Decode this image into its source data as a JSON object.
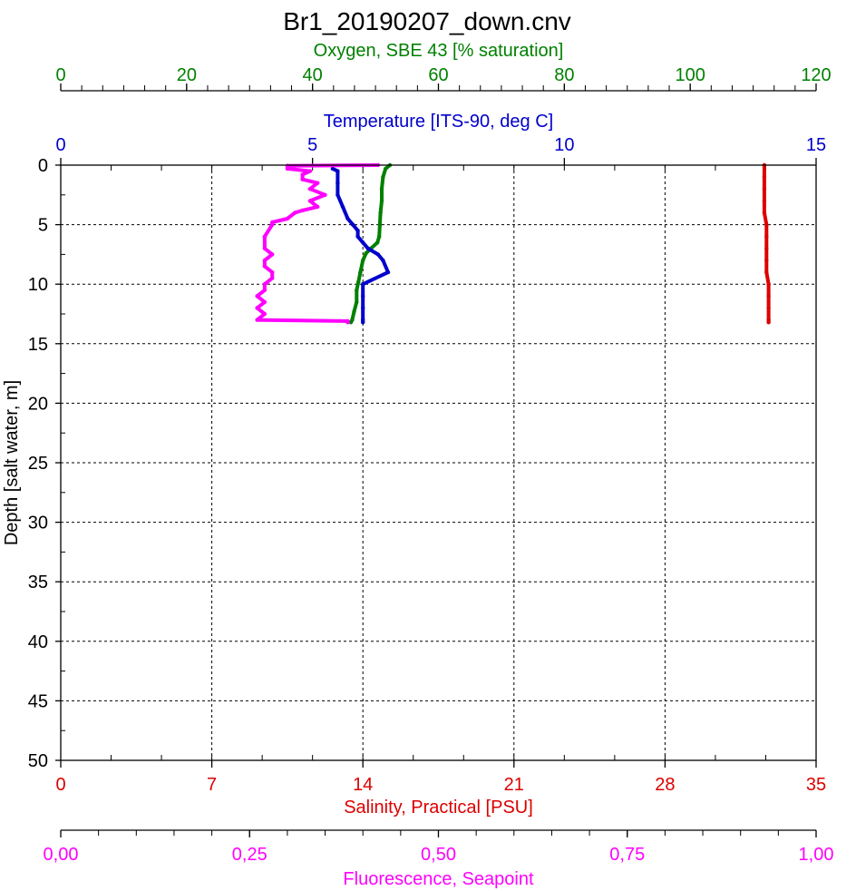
{
  "chart_data": {
    "type": "line",
    "title": "Br1_20190207_down.cnv",
    "y_axis": {
      "label": "Depth [salt water, m]",
      "range": [
        0,
        50
      ],
      "inverted": true,
      "ticks": [
        0,
        5,
        10,
        15,
        20,
        25,
        30,
        35,
        40,
        45,
        50
      ],
      "tick_labels": [
        "0",
        "5",
        "10",
        "15",
        "20",
        "25",
        "30",
        "35",
        "40",
        "45",
        "50"
      ],
      "color": "#000000"
    },
    "x_axes": [
      {
        "id": "oxygen",
        "label": "Oxygen, SBE 43 [% saturation]",
        "position": "top-outer",
        "range": [
          0,
          120
        ],
        "ticks": [
          0,
          20,
          40,
          60,
          80,
          100,
          120
        ],
        "tick_labels": [
          "0",
          "20",
          "40",
          "60",
          "80",
          "100",
          "120"
        ],
        "color": "#008000"
      },
      {
        "id": "temperature",
        "label": "Temperature [ITS-90, deg C]",
        "position": "top-inner",
        "range": [
          0,
          15
        ],
        "ticks": [
          0,
          5,
          10,
          15
        ],
        "tick_labels": [
          "0",
          "5",
          "10",
          "15"
        ],
        "color": "#0000cc"
      },
      {
        "id": "salinity",
        "label": "Salinity, Practical [PSU]",
        "position": "bottom-inner",
        "range": [
          0,
          35
        ],
        "ticks": [
          0,
          7,
          14,
          21,
          28,
          35
        ],
        "tick_labels": [
          "0",
          "7",
          "14",
          "21",
          "28",
          "35"
        ],
        "color": "#dd0000"
      },
      {
        "id": "fluorescence",
        "label": "Fluorescence, Seapoint",
        "position": "bottom-outer",
        "range": [
          0,
          1
        ],
        "ticks": [
          0,
          0.25,
          0.5,
          0.75,
          1.0
        ],
        "tick_labels": [
          "0,00",
          "0,25",
          "0,50",
          "0,75",
          "1,00"
        ],
        "color": "#ff00ff"
      }
    ],
    "grid": true,
    "series": [
      {
        "axis": "oxygen",
        "color": "#008000",
        "points": [
          [
            52.3,
            0.0
          ],
          [
            51.6,
            0.3
          ],
          [
            51.2,
            1.0
          ],
          [
            51.0,
            2.0
          ],
          [
            51.0,
            3.0
          ],
          [
            50.8,
            4.0
          ],
          [
            50.7,
            5.0
          ],
          [
            50.6,
            6.0
          ],
          [
            50.3,
            6.5
          ],
          [
            49.3,
            7.0
          ],
          [
            48.5,
            7.4
          ],
          [
            48.0,
            8.0
          ],
          [
            47.6,
            9.0
          ],
          [
            47.3,
            9.8
          ],
          [
            47.0,
            10.5
          ],
          [
            47.0,
            11.5
          ],
          [
            46.6,
            12.3
          ],
          [
            46.3,
            13.0
          ],
          [
            46.1,
            13.2
          ]
        ]
      },
      {
        "axis": "temperature",
        "color": "#0000cc",
        "points": [
          [
            5.4,
            0.3
          ],
          [
            5.5,
            0.5
          ],
          [
            5.5,
            1.5
          ],
          [
            5.5,
            2.5
          ],
          [
            5.6,
            3.5
          ],
          [
            5.7,
            4.5
          ],
          [
            5.8,
            5.0
          ],
          [
            5.9,
            5.5
          ],
          [
            5.9,
            6.0
          ],
          [
            6.0,
            6.5
          ],
          [
            6.1,
            7.0
          ],
          [
            6.3,
            7.5
          ],
          [
            6.4,
            8.0
          ],
          [
            6.5,
            9.0
          ],
          [
            6.0,
            10.0
          ],
          [
            6.0,
            11.0
          ],
          [
            6.0,
            12.0
          ],
          [
            6.0,
            13.0
          ],
          [
            6.0,
            13.2
          ]
        ]
      },
      {
        "axis": "salinity",
        "color": "#dd0000",
        "points": [
          [
            32.6,
            0.0
          ],
          [
            32.6,
            1.0
          ],
          [
            32.6,
            2.0
          ],
          [
            32.6,
            3.0
          ],
          [
            32.6,
            4.0
          ],
          [
            32.7,
            5.0
          ],
          [
            32.7,
            6.0
          ],
          [
            32.7,
            7.0
          ],
          [
            32.7,
            8.0
          ],
          [
            32.7,
            9.0
          ],
          [
            32.8,
            10.0
          ],
          [
            32.8,
            11.0
          ],
          [
            32.8,
            12.0
          ],
          [
            32.8,
            13.0
          ],
          [
            32.8,
            13.2
          ]
        ]
      },
      {
        "axis": "fluorescence",
        "color": "#ff00ff",
        "points": [
          [
            0.42,
            0.0
          ],
          [
            0.3,
            0.05
          ],
          [
            0.3,
            0.3
          ],
          [
            0.33,
            0.5
          ],
          [
            0.32,
            0.8
          ],
          [
            0.32,
            1.2
          ],
          [
            0.34,
            1.5
          ],
          [
            0.33,
            2.0
          ],
          [
            0.35,
            2.5
          ],
          [
            0.33,
            3.0
          ],
          [
            0.34,
            3.5
          ],
          [
            0.32,
            3.8
          ],
          [
            0.31,
            4.0
          ],
          [
            0.3,
            4.5
          ],
          [
            0.28,
            4.8
          ],
          [
            0.28,
            5.0
          ],
          [
            0.27,
            6.0
          ],
          [
            0.27,
            7.0
          ],
          [
            0.28,
            7.5
          ],
          [
            0.27,
            8.0
          ],
          [
            0.27,
            8.5
          ],
          [
            0.28,
            9.0
          ],
          [
            0.28,
            9.5
          ],
          [
            0.27,
            10.0
          ],
          [
            0.27,
            10.5
          ],
          [
            0.26,
            11.0
          ],
          [
            0.27,
            11.5
          ],
          [
            0.26,
            12.0
          ],
          [
            0.27,
            12.5
          ],
          [
            0.26,
            13.0
          ],
          [
            0.38,
            13.1
          ],
          [
            0.38,
            13.2
          ]
        ]
      }
    ]
  }
}
